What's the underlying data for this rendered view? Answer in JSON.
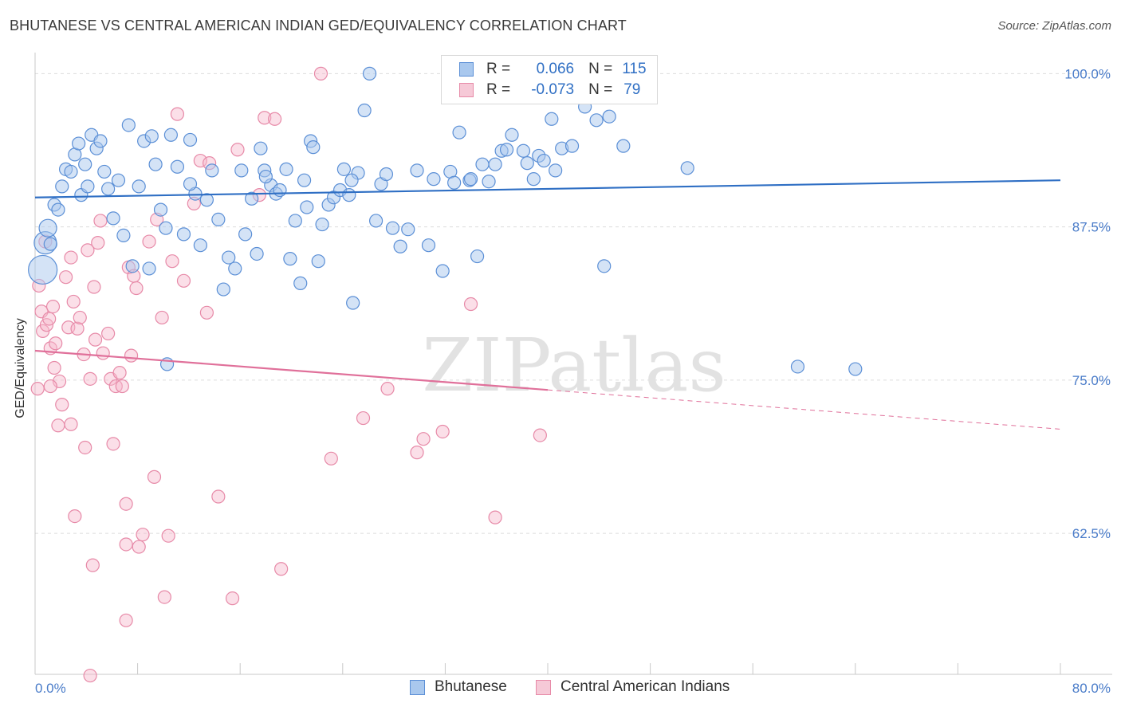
{
  "title": "BHUTANESE VS CENTRAL AMERICAN INDIAN GED/EQUIVALENCY CORRELATION CHART",
  "source": "Source: ZipAtlas.com",
  "watermark": "ZIPatlas",
  "legend": {
    "rows": [
      {
        "r_label": "R =",
        "r_value": "0.066",
        "n_label": "N =",
        "n_value": "115"
      },
      {
        "r_label": "R =",
        "r_value": "-0.073",
        "n_label": "N =",
        "n_value": "79"
      }
    ]
  },
  "bottom_legend": [
    "Bhutanese",
    "Central American Indians"
  ],
  "colors": {
    "blue_fill": "#a9c8ee",
    "blue_stroke": "#5b8fd6",
    "blue_line": "#2f6fc4",
    "pink_fill": "#f6b8cb",
    "pink_stroke": "#e78aa8",
    "pink_line": "#e0709a",
    "tick_text": "#4a7cc9",
    "grid": "#dcdcdc"
  },
  "chart_data": {
    "type": "scatter",
    "title": "BHUTANESE VS CENTRAL AMERICAN INDIAN GED/EQUIVALENCY CORRELATION CHART",
    "xlabel": "",
    "ylabel": "GED/Equivalency",
    "xlim": [
      0,
      80
    ],
    "ylim": [
      51,
      101
    ],
    "x_tick_labels": [
      "0.0%",
      "80.0%"
    ],
    "y_ticks": [
      62.5,
      75.0,
      87.5,
      100.0
    ],
    "y_tick_labels": [
      "62.5%",
      "75.0%",
      "87.5%",
      "100.0%"
    ],
    "grid": true,
    "series": [
      {
        "name": "Bhutanese",
        "R": 0.066,
        "N": 115,
        "trend": {
          "x0": 0,
          "y0": 89.9,
          "x1": 80,
          "y1": 91.3
        },
        "points": [
          [
            0.6,
            84.0
          ],
          [
            0.8,
            86.2
          ],
          [
            1.0,
            87.4
          ],
          [
            1.2,
            86.1
          ],
          [
            1.5,
            89.3
          ],
          [
            1.8,
            88.9
          ],
          [
            2.1,
            90.8
          ],
          [
            2.4,
            92.2
          ],
          [
            2.8,
            92.0
          ],
          [
            3.1,
            93.4
          ],
          [
            3.4,
            94.3
          ],
          [
            3.6,
            90.1
          ],
          [
            3.9,
            92.6
          ],
          [
            4.1,
            90.8
          ],
          [
            4.4,
            95.0
          ],
          [
            4.8,
            93.9
          ],
          [
            5.1,
            94.5
          ],
          [
            5.4,
            92.0
          ],
          [
            5.7,
            90.6
          ],
          [
            6.1,
            88.2
          ],
          [
            6.5,
            91.3
          ],
          [
            6.9,
            86.8
          ],
          [
            7.3,
            95.8
          ],
          [
            7.6,
            84.3
          ],
          [
            8.1,
            90.8
          ],
          [
            8.5,
            94.5
          ],
          [
            8.9,
            84.1
          ],
          [
            9.4,
            92.6
          ],
          [
            9.8,
            88.9
          ],
          [
            10.2,
            87.4
          ],
          [
            10.6,
            95.0
          ],
          [
            11.1,
            92.4
          ],
          [
            11.6,
            86.9
          ],
          [
            12.1,
            94.6
          ],
          [
            12.5,
            90.2
          ],
          [
            12.9,
            86.0
          ],
          [
            13.4,
            89.7
          ],
          [
            13.8,
            92.1
          ],
          [
            14.3,
            88.1
          ],
          [
            14.7,
            82.4
          ],
          [
            15.1,
            85.0
          ],
          [
            15.6,
            84.1
          ],
          [
            16.1,
            92.1
          ],
          [
            16.4,
            86.9
          ],
          [
            16.9,
            89.8
          ],
          [
            17.3,
            85.3
          ],
          [
            17.6,
            93.9
          ],
          [
            17.9,
            92.1
          ],
          [
            18.4,
            90.9
          ],
          [
            18.8,
            90.2
          ],
          [
            19.1,
            90.5
          ],
          [
            19.6,
            92.2
          ],
          [
            19.9,
            84.9
          ],
          [
            20.3,
            88.0
          ],
          [
            20.7,
            82.9
          ],
          [
            21.2,
            89.1
          ],
          [
            21.5,
            94.5
          ],
          [
            21.7,
            94.0
          ],
          [
            22.1,
            84.7
          ],
          [
            22.4,
            87.7
          ],
          [
            22.9,
            89.3
          ],
          [
            23.3,
            89.9
          ],
          [
            23.8,
            90.5
          ],
          [
            24.1,
            92.2
          ],
          [
            24.5,
            90.1
          ],
          [
            24.8,
            81.3
          ],
          [
            25.2,
            91.9
          ],
          [
            25.7,
            97.0
          ],
          [
            26.1,
            100.0
          ],
          [
            26.6,
            88.0
          ],
          [
            27.0,
            91.0
          ],
          [
            27.4,
            91.8
          ],
          [
            27.9,
            87.4
          ],
          [
            28.5,
            85.9
          ],
          [
            29.1,
            87.3
          ],
          [
            29.8,
            92.1
          ],
          [
            30.7,
            86.0
          ],
          [
            31.1,
            91.4
          ],
          [
            31.8,
            83.9
          ],
          [
            32.4,
            92.0
          ],
          [
            32.7,
            91.1
          ],
          [
            33.1,
            95.2
          ],
          [
            33.9,
            91.3
          ],
          [
            34.5,
            85.1
          ],
          [
            34.9,
            92.6
          ],
          [
            35.4,
            91.2
          ],
          [
            35.9,
            92.6
          ],
          [
            36.4,
            93.7
          ],
          [
            36.8,
            93.8
          ],
          [
            37.2,
            95.0
          ],
          [
            38.1,
            93.7
          ],
          [
            38.4,
            92.7
          ],
          [
            38.9,
            91.4
          ],
          [
            39.3,
            93.3
          ],
          [
            39.7,
            92.9
          ],
          [
            40.3,
            96.3
          ],
          [
            40.6,
            92.1
          ],
          [
            41.1,
            93.9
          ],
          [
            41.9,
            94.1
          ],
          [
            42.9,
            97.3
          ],
          [
            43.8,
            96.2
          ],
          [
            44.4,
            84.3
          ],
          [
            44.8,
            96.5
          ],
          [
            45.9,
            94.1
          ],
          [
            50.9,
            92.3
          ],
          [
            59.5,
            76.1
          ],
          [
            64.0,
            75.9
          ],
          [
            43.6,
            100.2
          ],
          [
            10.3,
            76.3
          ],
          [
            9.1,
            94.9
          ],
          [
            12.1,
            91.0
          ],
          [
            18.0,
            91.6
          ],
          [
            24.7,
            91.3
          ],
          [
            34.0,
            91.4
          ],
          [
            21.0,
            91.3
          ]
        ]
      },
      {
        "name": "Central American Indians",
        "R": -0.073,
        "N": 79,
        "trend": {
          "x0": 0,
          "y0": 77.4,
          "x1": 40,
          "y1": 74.2,
          "dash_to": {
            "x": 80,
            "y": 71.0
          }
        },
        "points": [
          [
            0.3,
            82.7
          ],
          [
            0.5,
            80.6
          ],
          [
            0.6,
            79.0
          ],
          [
            0.8,
            86.3
          ],
          [
            0.9,
            79.5
          ],
          [
            1.1,
            80.0
          ],
          [
            1.2,
            77.6
          ],
          [
            1.4,
            81.0
          ],
          [
            1.5,
            76.0
          ],
          [
            1.6,
            78.0
          ],
          [
            1.9,
            74.9
          ],
          [
            2.1,
            73.0
          ],
          [
            2.4,
            83.4
          ],
          [
            2.6,
            79.3
          ],
          [
            2.8,
            85.0
          ],
          [
            3.0,
            81.4
          ],
          [
            3.3,
            79.2
          ],
          [
            3.5,
            80.1
          ],
          [
            3.8,
            77.1
          ],
          [
            3.9,
            69.5
          ],
          [
            4.1,
            85.6
          ],
          [
            4.3,
            75.1
          ],
          [
            4.6,
            82.6
          ],
          [
            4.7,
            78.3
          ],
          [
            4.9,
            86.2
          ],
          [
            5.1,
            88.0
          ],
          [
            5.3,
            77.2
          ],
          [
            5.7,
            78.8
          ],
          [
            5.9,
            75.1
          ],
          [
            6.1,
            69.8
          ],
          [
            6.3,
            74.5
          ],
          [
            6.6,
            75.6
          ],
          [
            6.8,
            74.5
          ],
          [
            7.1,
            64.9
          ],
          [
            7.3,
            84.2
          ],
          [
            7.5,
            77.0
          ],
          [
            7.7,
            83.5
          ],
          [
            7.9,
            82.5
          ],
          [
            8.1,
            61.4
          ],
          [
            8.4,
            62.4
          ],
          [
            8.9,
            86.3
          ],
          [
            9.3,
            67.1
          ],
          [
            9.5,
            88.1
          ],
          [
            9.9,
            80.1
          ],
          [
            10.1,
            57.3
          ],
          [
            10.4,
            62.3
          ],
          [
            10.7,
            84.7
          ],
          [
            11.1,
            96.7
          ],
          [
            11.6,
            83.1
          ],
          [
            12.4,
            89.4
          ],
          [
            12.9,
            92.9
          ],
          [
            13.4,
            80.5
          ],
          [
            13.6,
            92.7
          ],
          [
            14.3,
            65.5
          ],
          [
            15.4,
            57.2
          ],
          [
            15.8,
            93.8
          ],
          [
            17.5,
            90.1
          ],
          [
            17.9,
            96.4
          ],
          [
            18.7,
            96.3
          ],
          [
            19.2,
            59.6
          ],
          [
            22.3,
            100.0
          ],
          [
            23.1,
            68.6
          ],
          [
            25.6,
            71.9
          ],
          [
            27.5,
            74.3
          ],
          [
            29.8,
            69.1
          ],
          [
            30.3,
            70.2
          ],
          [
            31.8,
            70.8
          ],
          [
            34.0,
            81.2
          ],
          [
            35.9,
            63.8
          ],
          [
            39.4,
            70.5
          ],
          [
            0.2,
            74.3
          ],
          [
            1.2,
            74.5
          ],
          [
            3.1,
            63.9
          ],
          [
            4.5,
            59.9
          ],
          [
            7.1,
            61.6
          ],
          [
            7.1,
            55.4
          ],
          [
            4.3,
            50.9
          ],
          [
            2.8,
            71.4
          ],
          [
            1.8,
            71.3
          ]
        ]
      }
    ]
  }
}
